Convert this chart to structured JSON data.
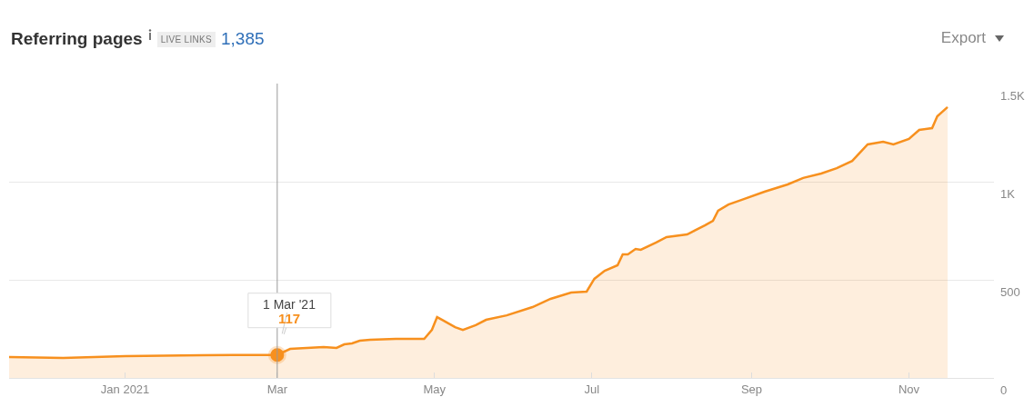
{
  "chart_data": {
    "type": "area",
    "title": "Referring pages",
    "annotations": [
      "LIVE LINKS",
      "1,385",
      "Export",
      {
        "text": "1 Mar '21",
        "x": "2021-03-01",
        "y": 117
      },
      {
        "text": "117",
        "x": "2021-03-01",
        "y": 117
      }
    ],
    "x": [
      "2020-11-17",
      "2020-12-08",
      "2021-01-01",
      "2021-01-31",
      "2021-03-01",
      "2021-03-06",
      "2021-03-19",
      "2021-03-24",
      "2021-03-27",
      "2021-03-30",
      "2021-04-02",
      "2021-04-06",
      "2021-04-16",
      "2021-04-27",
      "2021-04-30",
      "2021-05-02",
      "2021-05-04",
      "2021-05-09",
      "2021-05-12",
      "2021-05-17",
      "2021-05-21",
      "2021-05-29",
      "2021-06-08",
      "2021-06-15",
      "2021-06-23",
      "2021-06-29",
      "2021-07-02",
      "2021-07-06",
      "2021-07-11",
      "2021-07-13",
      "2021-07-15",
      "2021-07-18",
      "2021-07-20",
      "2021-07-26",
      "2021-07-30",
      "2021-08-07",
      "2021-08-09",
      "2021-08-14",
      "2021-08-17",
      "2021-08-19",
      "2021-08-23",
      "2021-08-28",
      "2021-09-06",
      "2021-09-15",
      "2021-09-21",
      "2021-09-28",
      "2021-10-04",
      "2021-10-10",
      "2021-10-16",
      "2021-10-22",
      "2021-10-26",
      "2021-11-01",
      "2021-11-05",
      "2021-11-10",
      "2021-11-12",
      "2021-11-16"
    ],
    "series": [
      {
        "color": "#f7901e",
        "values": [
          106,
          102,
          111,
          116,
          117,
          148,
          157,
          153,
          171,
          176,
          190,
          194,
          199,
          199,
          245,
          310,
          296,
          259,
          245,
          269,
          296,
          319,
          361,
          403,
          435,
          440,
          505,
          546,
          574,
          630,
          630,
          657,
          653,
          690,
          718,
          731,
          745,
          778,
          801,
          852,
          884,
          907,
          949,
          986,
          1019,
          1042,
          1069,
          1106,
          1190,
          1204,
          1190,
          1218,
          1264,
          1273,
          1333,
          1380
        ]
      }
    ],
    "xlim": [
      "2020-11-17",
      "2021-12-04"
    ],
    "xticks": [
      {
        "value": "2021-01-01",
        "label": "Jan 2021"
      },
      {
        "value": "2021-03-01",
        "label": "Mar"
      },
      {
        "value": "2021-05-01",
        "label": "May"
      },
      {
        "value": "2021-07-01",
        "label": "Jul"
      },
      {
        "value": "2021-09-01",
        "label": "Sep"
      },
      {
        "value": "2021-11-01",
        "label": "Nov"
      }
    ],
    "ylim": [
      0,
      1500
    ],
    "yticks": [
      0,
      500,
      {
        "value": 1000,
        "label": "1K"
      },
      {
        "value": 1500,
        "label": "1.5K"
      }
    ],
    "ref_lines": [
      {
        "axis": "x",
        "value": "2021-03-01",
        "color": "#999999"
      }
    ],
    "grid": "y",
    "marker": "none",
    "line_style": "solid"
  }
}
